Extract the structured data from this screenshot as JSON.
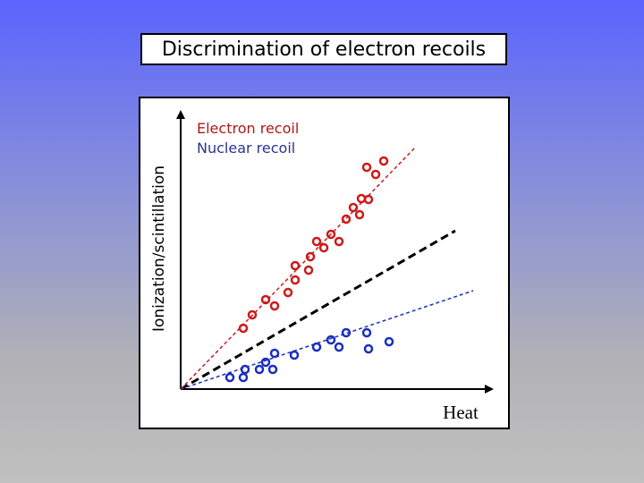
{
  "chart_data": {
    "type": "scatter",
    "title": "Discrimination of electron recoils",
    "xlabel": "Heat",
    "ylabel": "Ionization/scintillation",
    "xlim": [
      0,
      340
    ],
    "ylim": [
      0,
      325
    ],
    "grid": false,
    "legend_position": "top-left",
    "series": [
      {
        "name": "Electron recoil",
        "color": "#cc1a1a",
        "fit": [
          [
            0,
            0
          ],
          [
            262,
            270
          ]
        ],
        "points": [
          [
            70,
            68
          ],
          [
            80,
            83
          ],
          [
            95,
            100
          ],
          [
            105,
            93
          ],
          [
            120,
            108
          ],
          [
            128,
            122
          ],
          [
            128,
            138
          ],
          [
            143,
            133
          ],
          [
            145,
            148
          ],
          [
            152,
            165
          ],
          [
            160,
            158
          ],
          [
            168,
            173
          ],
          [
            177,
            165
          ],
          [
            185,
            190
          ],
          [
            193,
            203
          ],
          [
            200,
            195
          ],
          [
            202,
            213
          ],
          [
            210,
            212
          ],
          [
            208,
            248
          ],
          [
            218,
            240
          ],
          [
            227,
            255
          ]
        ]
      },
      {
        "name": "Nuclear recoil",
        "color": "#1a2ec0",
        "fit": [
          [
            0,
            0
          ],
          [
            327,
            110
          ]
        ],
        "points": [
          [
            55,
            13
          ],
          [
            70,
            13
          ],
          [
            72,
            22
          ],
          [
            88,
            22
          ],
          [
            95,
            30
          ],
          [
            103,
            22
          ],
          [
            105,
            40
          ],
          [
            127,
            38
          ],
          [
            152,
            47
          ],
          [
            168,
            55
          ],
          [
            177,
            47
          ],
          [
            185,
            63
          ],
          [
            208,
            63
          ],
          [
            210,
            45
          ],
          [
            233,
            53
          ]
        ]
      }
    ],
    "diagonal": {
      "color": "#000000",
      "fit": [
        [
          0,
          0
        ],
        [
          307,
          177
        ]
      ]
    }
  }
}
